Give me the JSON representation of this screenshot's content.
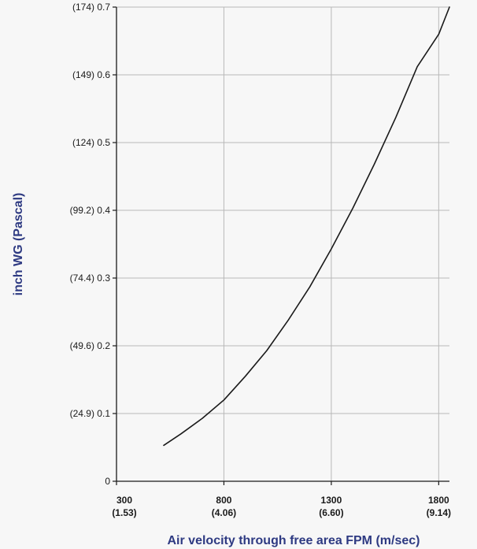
{
  "chart_data": {
    "type": "line",
    "xlabel": "Air velocity through free area FPM  (m/sec)",
    "ylabel": "inch WG (Pascal)",
    "xlim": [
      300,
      1850
    ],
    "ylim": [
      0,
      0.7
    ],
    "x_ticks": [
      {
        "value": 300,
        "label": "300",
        "sublabel": "(1.53)"
      },
      {
        "value": 800,
        "label": "800",
        "sublabel": "(4.06)"
      },
      {
        "value": 1300,
        "label": "1300",
        "sublabel": "(6.60)"
      },
      {
        "value": 1800,
        "label": "1800",
        "sublabel": "(9.14)"
      }
    ],
    "y_ticks": [
      {
        "value": 0,
        "label": "0"
      },
      {
        "value": 0.1,
        "label": "(24.9) 0.1"
      },
      {
        "value": 0.2,
        "label": "(49.6) 0.2"
      },
      {
        "value": 0.3,
        "label": "(74.4) 0.3"
      },
      {
        "value": 0.4,
        "label": "(99.2) 0.4"
      },
      {
        "value": 0.5,
        "label": "(124) 0.5"
      },
      {
        "value": 0.6,
        "label": "(149) 0.6"
      },
      {
        "value": 0.7,
        "label": "(174) 0.7"
      }
    ],
    "grid": true,
    "series": [
      {
        "x": [
          520,
          600,
          700,
          800,
          900,
          1000,
          1100,
          1200,
          1300,
          1400,
          1500,
          1600,
          1700,
          1800,
          1850
        ],
        "y": [
          0.053,
          0.07,
          0.093,
          0.12,
          0.155,
          0.193,
          0.238,
          0.287,
          0.343,
          0.403,
          0.468,
          0.537,
          0.612,
          0.66,
          0.7
        ]
      }
    ],
    "colors": {
      "line": "#1a1a1a",
      "grid": "#b8b8b8",
      "axis": "#1a1a1a",
      "axis_label": "#2e3a82"
    }
  }
}
